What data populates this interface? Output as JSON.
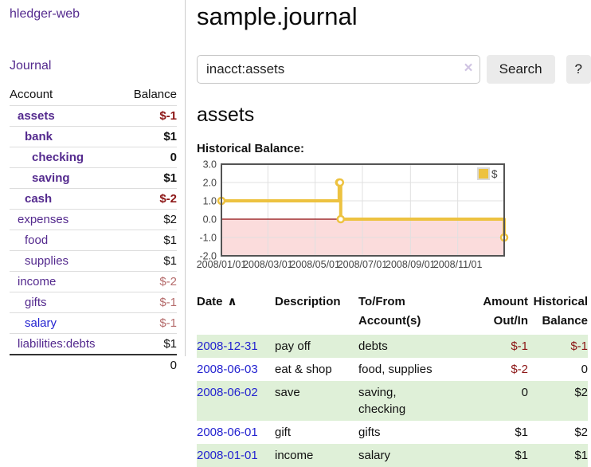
{
  "colors": {
    "purple_link": "#542a8e",
    "blue_link": "#2423d0",
    "negative_strong": "#8c1616",
    "negative_soft": "#b56c6c",
    "row_shade_green": "#dff0d8",
    "chart_gold": "#EDC240",
    "chart_zero_line": "#8f0d10",
    "chart_negative_fill": "#fbdcdc"
  },
  "app": {
    "brand": "hledger-web",
    "nav_journal": "Journal"
  },
  "sidebar": {
    "account_header": "Account",
    "balance_header": "Balance",
    "accounts": [
      {
        "name": "assets",
        "indent": 0,
        "bold": true,
        "balance": "$-1",
        "neg": true,
        "alt_color": false
      },
      {
        "name": "bank",
        "indent": 1,
        "bold": true,
        "balance": "$1",
        "neg": false,
        "alt_color": false
      },
      {
        "name": "checking",
        "indent": 2,
        "bold": true,
        "balance": "0",
        "neg": false,
        "alt_color": false
      },
      {
        "name": "saving",
        "indent": 2,
        "bold": true,
        "balance": "$1",
        "neg": false,
        "alt_color": false
      },
      {
        "name": "cash",
        "indent": 1,
        "bold": true,
        "balance": "$-2",
        "neg": true,
        "alt_color": false
      },
      {
        "name": "expenses",
        "indent": 0,
        "bold": false,
        "balance": "$2",
        "neg": false,
        "alt_color": false
      },
      {
        "name": "food",
        "indent": 1,
        "bold": false,
        "balance": "$1",
        "neg": false,
        "alt_color": false
      },
      {
        "name": "supplies",
        "indent": 1,
        "bold": false,
        "balance": "$1",
        "neg": false,
        "alt_color": false
      },
      {
        "name": "income",
        "indent": 0,
        "bold": false,
        "balance": "$-2",
        "neg": true,
        "alt_color": false
      },
      {
        "name": "gifts",
        "indent": 1,
        "bold": false,
        "balance": "$-1",
        "neg": true,
        "alt_color": false
      },
      {
        "name": "salary",
        "indent": 1,
        "bold": false,
        "balance": "$-1",
        "neg": true,
        "alt_color": true
      },
      {
        "name": "liabilities:debts",
        "indent": 0,
        "bold": false,
        "balance": "$1",
        "neg": false,
        "alt_color": false
      }
    ],
    "total": "0"
  },
  "header": {
    "title": "sample.journal"
  },
  "search": {
    "value": "inacct:assets",
    "clear_icon": "×",
    "button_label": "Search",
    "help_label": "?"
  },
  "account_page": {
    "title": "assets",
    "chart_label": "Historical Balance:"
  },
  "chart_data": {
    "type": "line",
    "title": "Historical Balance:",
    "step": true,
    "legend": {
      "label": "$",
      "position": "top-right"
    },
    "x_domain": [
      "2008-01-01",
      "2008-12-31"
    ],
    "x_ticks": [
      {
        "date": "2008-01-01",
        "label": "2008/01/01"
      },
      {
        "date": "2008-03-01",
        "label": "2008/03/01"
      },
      {
        "date": "2008-05-01",
        "label": "2008/05/01"
      },
      {
        "date": "2008-07-01",
        "label": "2008/07/01"
      },
      {
        "date": "2008-09-01",
        "label": "2008/09/01"
      },
      {
        "date": "2008-11-01",
        "label": "2008/11/01"
      }
    ],
    "y_ticks": [
      3.0,
      2.0,
      1.0,
      0.0,
      -1.0,
      -2.0
    ],
    "ylim": [
      -2,
      3
    ],
    "grid": true,
    "series": [
      {
        "name": "$",
        "points": [
          {
            "date": "2008-01-01",
            "value": 1
          },
          {
            "date": "2008-06-01",
            "value": 2
          },
          {
            "date": "2008-06-02",
            "value": 2
          },
          {
            "date": "2008-06-03",
            "value": 0
          },
          {
            "date": "2008-12-31",
            "value": -1
          }
        ]
      }
    ]
  },
  "register": {
    "sort_icon": "∧",
    "columns": [
      {
        "label": "Date",
        "align": "left"
      },
      {
        "label": "Description",
        "align": "left"
      },
      {
        "label": "To/From Account(s)",
        "align": "left"
      },
      {
        "label": "Amount Out/In",
        "align": "right"
      },
      {
        "label": "Historical Balance",
        "align": "right"
      }
    ],
    "rows": [
      {
        "date": "2008-12-31",
        "description": "pay off",
        "accounts": "debts",
        "amount": "$-1",
        "balance": "$-1",
        "shaded": true
      },
      {
        "date": "2008-06-03",
        "description": "eat & shop",
        "accounts": "food, supplies",
        "amount": "$-2",
        "balance": "0",
        "shaded": false
      },
      {
        "date": "2008-06-02",
        "description": "save",
        "accounts": "saving, checking",
        "amount": "0",
        "balance": "$2",
        "shaded": true
      },
      {
        "date": "2008-06-01",
        "description": "gift",
        "accounts": "gifts",
        "amount": "$1",
        "balance": "$2",
        "shaded": false
      },
      {
        "date": "2008-01-01",
        "description": "income",
        "accounts": "salary",
        "amount": "$1",
        "balance": "$1",
        "shaded": true
      }
    ]
  }
}
